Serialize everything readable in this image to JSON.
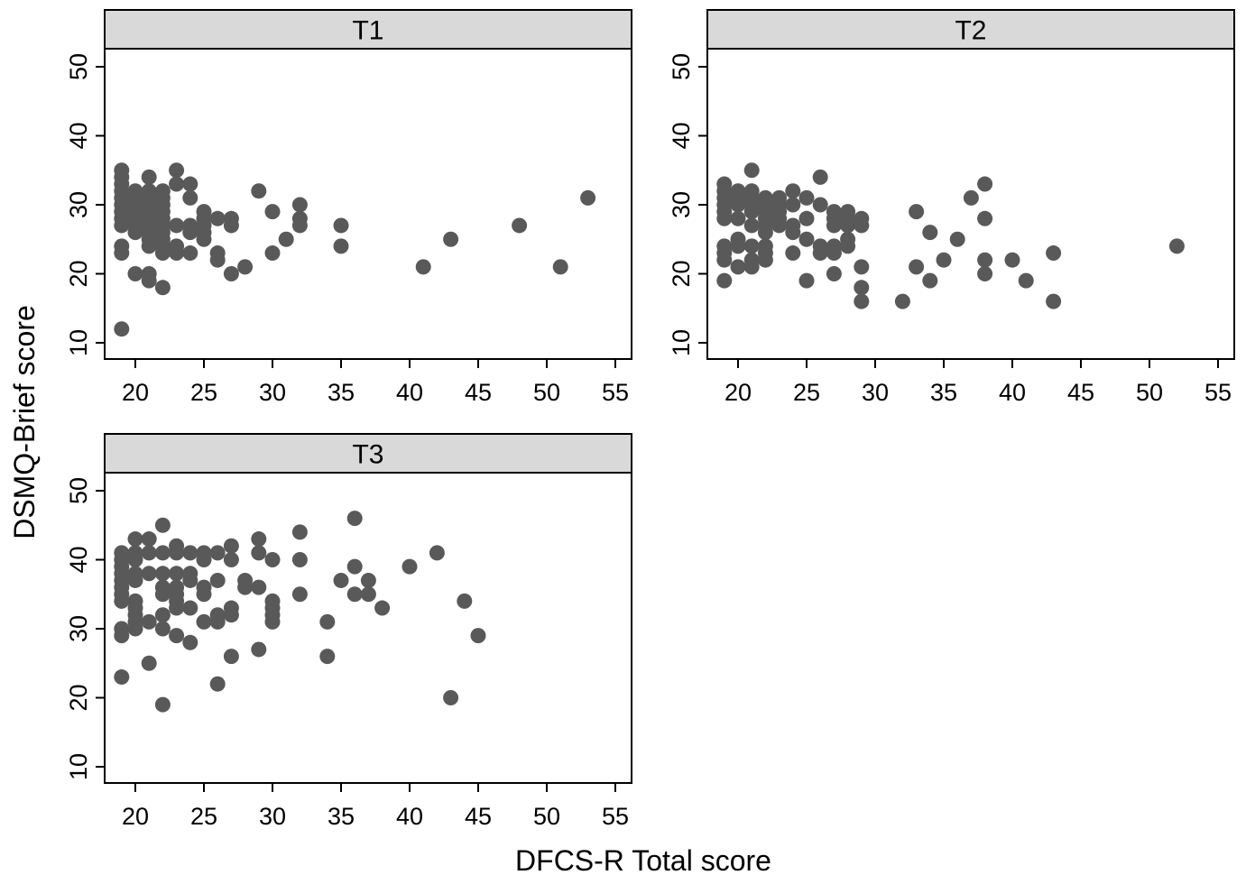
{
  "chart_data": {
    "type": "scatter",
    "xlabel": "DFCS-R Total score",
    "ylabel": "DSMQ-Brief score",
    "xlim": [
      18,
      56
    ],
    "ylim": [
      8,
      52
    ],
    "x_ticks": [
      20,
      25,
      30,
      35,
      40,
      45,
      50,
      55
    ],
    "y_ticks": [
      10,
      20,
      30,
      40,
      50
    ],
    "grid": false,
    "legend": "none",
    "marker_color": "#595959",
    "panels": [
      {
        "label": "T1",
        "points": [
          [
            19,
            35
          ],
          [
            19,
            34
          ],
          [
            19,
            33
          ],
          [
            19,
            32
          ],
          [
            19,
            31
          ],
          [
            19,
            30
          ],
          [
            19,
            29
          ],
          [
            19,
            28
          ],
          [
            19,
            27
          ],
          [
            19,
            24
          ],
          [
            19,
            23
          ],
          [
            19,
            12
          ],
          [
            20,
            32
          ],
          [
            20,
            31
          ],
          [
            20,
            30
          ],
          [
            20,
            29
          ],
          [
            20,
            28
          ],
          [
            20,
            27
          ],
          [
            20,
            26
          ],
          [
            20,
            20
          ],
          [
            21,
            34
          ],
          [
            21,
            32
          ],
          [
            21,
            31
          ],
          [
            21,
            30
          ],
          [
            21,
            29
          ],
          [
            21,
            28
          ],
          [
            21,
            27
          ],
          [
            21,
            26
          ],
          [
            21,
            25
          ],
          [
            21,
            24
          ],
          [
            21,
            20
          ],
          [
            21,
            19
          ],
          [
            22,
            32
          ],
          [
            22,
            31
          ],
          [
            22,
            30
          ],
          [
            22,
            29
          ],
          [
            22,
            28
          ],
          [
            22,
            27
          ],
          [
            22,
            26
          ],
          [
            22,
            25
          ],
          [
            22,
            24
          ],
          [
            22,
            23
          ],
          [
            22,
            18
          ],
          [
            23,
            35
          ],
          [
            23,
            33
          ],
          [
            23,
            27
          ],
          [
            23,
            24
          ],
          [
            23,
            23
          ],
          [
            24,
            33
          ],
          [
            24,
            31
          ],
          [
            24,
            27
          ],
          [
            24,
            26
          ],
          [
            24,
            23
          ],
          [
            25,
            29
          ],
          [
            25,
            28
          ],
          [
            25,
            27
          ],
          [
            25,
            26
          ],
          [
            25,
            25
          ],
          [
            26,
            28
          ],
          [
            26,
            23
          ],
          [
            26,
            22
          ],
          [
            27,
            28
          ],
          [
            27,
            27
          ],
          [
            27,
            20
          ],
          [
            28,
            21
          ],
          [
            29,
            32
          ],
          [
            30,
            29
          ],
          [
            30,
            23
          ],
          [
            31,
            25
          ],
          [
            32,
            30
          ],
          [
            32,
            28
          ],
          [
            32,
            27
          ],
          [
            35,
            27
          ],
          [
            35,
            24
          ],
          [
            41,
            21
          ],
          [
            43,
            25
          ],
          [
            48,
            27
          ],
          [
            51,
            21
          ],
          [
            53,
            31
          ]
        ]
      },
      {
        "label": "T2",
        "points": [
          [
            19,
            33
          ],
          [
            19,
            32
          ],
          [
            19,
            31
          ],
          [
            19,
            30
          ],
          [
            19,
            29
          ],
          [
            19,
            28
          ],
          [
            19,
            24
          ],
          [
            19,
            23
          ],
          [
            19,
            22
          ],
          [
            19,
            19
          ],
          [
            20,
            32
          ],
          [
            20,
            31
          ],
          [
            20,
            30
          ],
          [
            20,
            28
          ],
          [
            20,
            25
          ],
          [
            20,
            24
          ],
          [
            20,
            21
          ],
          [
            21,
            35
          ],
          [
            21,
            32
          ],
          [
            21,
            31
          ],
          [
            21,
            30
          ],
          [
            21,
            29
          ],
          [
            21,
            27
          ],
          [
            21,
            24
          ],
          [
            21,
            22
          ],
          [
            21,
            21
          ],
          [
            22,
            31
          ],
          [
            22,
            30
          ],
          [
            22,
            29
          ],
          [
            22,
            28
          ],
          [
            22,
            27
          ],
          [
            22,
            26
          ],
          [
            22,
            24
          ],
          [
            22,
            23
          ],
          [
            22,
            22
          ],
          [
            23,
            31
          ],
          [
            23,
            30
          ],
          [
            23,
            29
          ],
          [
            23,
            28
          ],
          [
            23,
            27
          ],
          [
            24,
            32
          ],
          [
            24,
            30
          ],
          [
            24,
            27
          ],
          [
            24,
            26
          ],
          [
            24,
            23
          ],
          [
            25,
            31
          ],
          [
            25,
            28
          ],
          [
            25,
            25
          ],
          [
            25,
            19
          ],
          [
            26,
            34
          ],
          [
            26,
            30
          ],
          [
            26,
            24
          ],
          [
            26,
            23
          ],
          [
            27,
            29
          ],
          [
            27,
            28
          ],
          [
            27,
            27
          ],
          [
            27,
            24
          ],
          [
            27,
            23
          ],
          [
            27,
            20
          ],
          [
            28,
            29
          ],
          [
            28,
            28
          ],
          [
            28,
            27
          ],
          [
            28,
            25
          ],
          [
            28,
            24
          ],
          [
            29,
            28
          ],
          [
            29,
            27
          ],
          [
            29,
            21
          ],
          [
            29,
            18
          ],
          [
            29,
            16
          ],
          [
            32,
            16
          ],
          [
            33,
            29
          ],
          [
            33,
            21
          ],
          [
            34,
            26
          ],
          [
            34,
            19
          ],
          [
            35,
            22
          ],
          [
            36,
            25
          ],
          [
            37,
            31
          ],
          [
            38,
            33
          ],
          [
            38,
            28
          ],
          [
            38,
            22
          ],
          [
            38,
            20
          ],
          [
            40,
            22
          ],
          [
            41,
            19
          ],
          [
            43,
            23
          ],
          [
            43,
            16
          ],
          [
            52,
            24
          ]
        ]
      },
      {
        "label": "T3",
        "points": [
          [
            19,
            41
          ],
          [
            19,
            40
          ],
          [
            19,
            39
          ],
          [
            19,
            38
          ],
          [
            19,
            37
          ],
          [
            19,
            36
          ],
          [
            19,
            35
          ],
          [
            19,
            34
          ],
          [
            19,
            30
          ],
          [
            19,
            29
          ],
          [
            19,
            23
          ],
          [
            20,
            43
          ],
          [
            20,
            41
          ],
          [
            20,
            40
          ],
          [
            20,
            38
          ],
          [
            20,
            37
          ],
          [
            20,
            34
          ],
          [
            20,
            33
          ],
          [
            20,
            32
          ],
          [
            20,
            31
          ],
          [
            20,
            30
          ],
          [
            21,
            43
          ],
          [
            21,
            41
          ],
          [
            21,
            38
          ],
          [
            21,
            31
          ],
          [
            21,
            25
          ],
          [
            22,
            45
          ],
          [
            22,
            41
          ],
          [
            22,
            38
          ],
          [
            22,
            36
          ],
          [
            22,
            35
          ],
          [
            22,
            32
          ],
          [
            22,
            30
          ],
          [
            22,
            19
          ],
          [
            23,
            42
          ],
          [
            23,
            41
          ],
          [
            23,
            38
          ],
          [
            23,
            36
          ],
          [
            23,
            35
          ],
          [
            23,
            34
          ],
          [
            23,
            33
          ],
          [
            23,
            29
          ],
          [
            24,
            41
          ],
          [
            24,
            38
          ],
          [
            24,
            37
          ],
          [
            24,
            33
          ],
          [
            24,
            28
          ],
          [
            25,
            41
          ],
          [
            25,
            40
          ],
          [
            25,
            36
          ],
          [
            25,
            35
          ],
          [
            25,
            31
          ],
          [
            26,
            41
          ],
          [
            26,
            37
          ],
          [
            26,
            32
          ],
          [
            26,
            31
          ],
          [
            26,
            22
          ],
          [
            27,
            42
          ],
          [
            27,
            40
          ],
          [
            27,
            33
          ],
          [
            27,
            32
          ],
          [
            27,
            26
          ],
          [
            28,
            37
          ],
          [
            28,
            36
          ],
          [
            29,
            43
          ],
          [
            29,
            41
          ],
          [
            29,
            36
          ],
          [
            29,
            27
          ],
          [
            30,
            40
          ],
          [
            30,
            34
          ],
          [
            30,
            33
          ],
          [
            30,
            32
          ],
          [
            30,
            31
          ],
          [
            32,
            44
          ],
          [
            32,
            40
          ],
          [
            32,
            35
          ],
          [
            34,
            31
          ],
          [
            34,
            26
          ],
          [
            35,
            37
          ],
          [
            36,
            46
          ],
          [
            36,
            39
          ],
          [
            36,
            35
          ],
          [
            37,
            37
          ],
          [
            37,
            35
          ],
          [
            38,
            33
          ],
          [
            40,
            39
          ],
          [
            42,
            41
          ],
          [
            43,
            20
          ],
          [
            44,
            34
          ],
          [
            45,
            29
          ]
        ]
      }
    ]
  }
}
